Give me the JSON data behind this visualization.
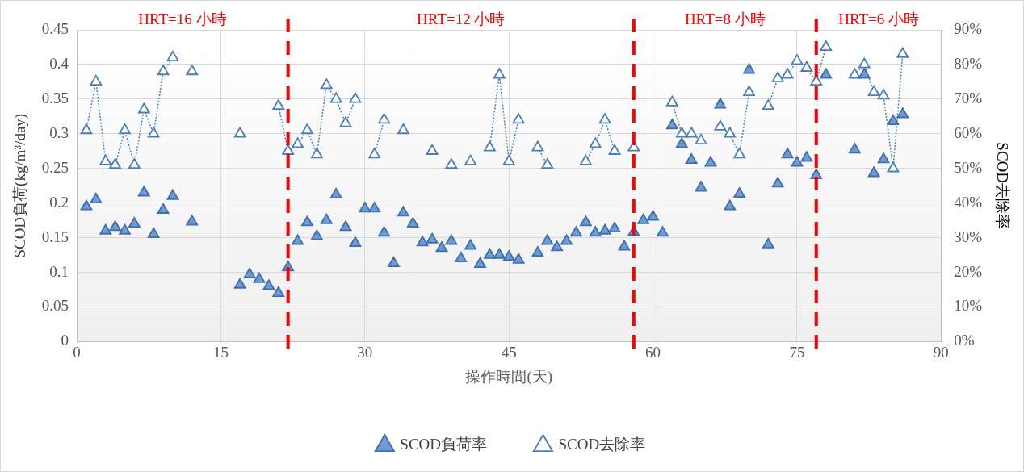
{
  "chart_data": {
    "type": "scatter",
    "xlabel": "操作時間(天)",
    "ylabel": "SCOD負荷(kg/m³/day)",
    "y2label": "SCOD去除率",
    "x": [
      1,
      2,
      3,
      4,
      5,
      6,
      7,
      8,
      9,
      10,
      11,
      12,
      13,
      14,
      15,
      16,
      17,
      18,
      19,
      20,
      21,
      22,
      23,
      24,
      25,
      26,
      27,
      28,
      29,
      30,
      31,
      32,
      33,
      34,
      35,
      36,
      37,
      38,
      39,
      40,
      41,
      42,
      43,
      44,
      45,
      46,
      47,
      48,
      49,
      50,
      51,
      52,
      53,
      54,
      55,
      56,
      57,
      58,
      59,
      60,
      61,
      62,
      63,
      64,
      65,
      66,
      67,
      68,
      69,
      70,
      71,
      72,
      73,
      74,
      75,
      76,
      77,
      78,
      79,
      80,
      81,
      82,
      83,
      84,
      85,
      86
    ],
    "series": [
      {
        "name": "SCOD負荷率",
        "type": "scatter",
        "marker": "triangle",
        "color": "#6f9bd5",
        "values": [
          0.195,
          0.205,
          0.16,
          0.165,
          0.16,
          0.17,
          0.215,
          0.155,
          0.19,
          0.21,
          null,
          0.173,
          null,
          null,
          null,
          null,
          0.082,
          0.097,
          0.09,
          0.08,
          0.07,
          0.107,
          0.145,
          0.172,
          0.152,
          0.175,
          0.212,
          0.165,
          0.142,
          0.192,
          0.192,
          0.157,
          0.113,
          0.186,
          0.17,
          0.143,
          0.147,
          0.135,
          0.145,
          0.12,
          0.138,
          0.112,
          0.125,
          0.125,
          0.122,
          0.118,
          null,
          0.128,
          0.145,
          0.136,
          0.145,
          0.157,
          0.172,
          0.157,
          0.16,
          0.163,
          0.137,
          0.158,
          0.175,
          0.18,
          0.157,
          0.312,
          0.285,
          0.262,
          0.222,
          0.258,
          0.342,
          0.195,
          0.213,
          0.392,
          null,
          0.14,
          0.228,
          0.27,
          0.258,
          0.265,
          0.24,
          0.385,
          null,
          null,
          0.277,
          0.385,
          0.243,
          0.263,
          0.318,
          0.328
        ]
      },
      {
        "name": "SCOD去除率",
        "type": "line",
        "axis": "y2",
        "marker": "triangle",
        "line_style": "dotted",
        "color": "#4a7ebb",
        "values": [
          61,
          75,
          52,
          51,
          61,
          51,
          67,
          60,
          78,
          82,
          null,
          78,
          null,
          null,
          null,
          null,
          60,
          null,
          null,
          null,
          68,
          55,
          57,
          61,
          54,
          74,
          70,
          63,
          70,
          null,
          54,
          64,
          null,
          61,
          null,
          null,
          55,
          null,
          51,
          null,
          52,
          null,
          56,
          77,
          52,
          64,
          null,
          56,
          51,
          null,
          null,
          null,
          52,
          57,
          64,
          55,
          null,
          56,
          null,
          null,
          null,
          69,
          60,
          60,
          58,
          null,
          62,
          60,
          54,
          72,
          null,
          68,
          76,
          77,
          81,
          79,
          75,
          85,
          null,
          null,
          77,
          80,
          72,
          71,
          50,
          83
        ]
      }
    ],
    "xlim": [
      0,
      90
    ],
    "xticks": [
      0,
      15,
      30,
      45,
      60,
      75,
      90
    ],
    "ylim": [
      0,
      0.45
    ],
    "yticks": [
      0,
      0.05,
      0.1,
      0.15,
      0.2,
      0.25,
      0.3,
      0.35,
      0.4,
      0.45
    ],
    "y2lim": [
      0,
      90
    ],
    "y2ticks": [
      {
        "value": 0,
        "label": "0%"
      },
      {
        "value": 10,
        "label": "10%"
      },
      {
        "value": 20,
        "label": "20%"
      },
      {
        "value": 30,
        "label": "30%"
      },
      {
        "value": 40,
        "label": "40%"
      },
      {
        "value": 50,
        "label": "50%"
      },
      {
        "value": 60,
        "label": "60%"
      },
      {
        "value": 70,
        "label": "70%"
      },
      {
        "value": 80,
        "label": "80%"
      },
      {
        "value": 90,
        "label": "90%"
      }
    ],
    "ref_lines": [
      {
        "axis": "x",
        "value": 22,
        "color": "#ff0000",
        "line_style": "dashed"
      },
      {
        "axis": "x",
        "value": 58,
        "color": "#ff0000",
        "line_style": "dashed"
      },
      {
        "axis": "x",
        "value": 77,
        "color": "#ff0000",
        "line_style": "dashed"
      }
    ],
    "annotations": [
      "HRT=16 小時",
      "HRT=12 小時",
      "HRT=8 小時",
      "HRT=6 小時"
    ],
    "grid": true,
    "legend": "bottom"
  }
}
